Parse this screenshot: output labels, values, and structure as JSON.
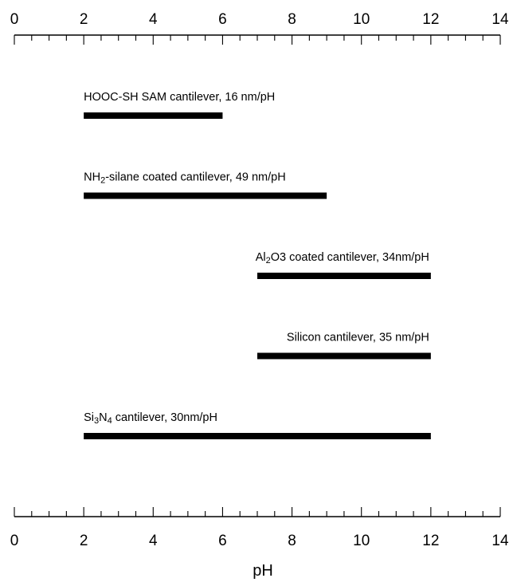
{
  "chart_data": {
    "type": "bar",
    "orientation": "horizontal-range",
    "title": "",
    "xlabel": "pH",
    "ylabel": "",
    "xlim": [
      0,
      14
    ],
    "major_ticks": [
      0,
      2,
      4,
      6,
      8,
      10,
      12,
      14
    ],
    "minor_tick_step": 0.5,
    "grid": false,
    "legend": "none",
    "bar_color": "#000000",
    "series": [
      {
        "label": "HOOC-SH SAM cantilever, 16 nm/pH",
        "label_parts": [
          {
            "t": "HOOC-SH SAM cantilever, 16 nm/pH"
          }
        ],
        "start": 2,
        "end": 6
      },
      {
        "label": "NH2-silane coated cantilever, 49 nm/pH",
        "label_parts": [
          {
            "t": "NH"
          },
          {
            "t": "2",
            "sub": true
          },
          {
            "t": "-silane coated cantilever, 49 nm/pH"
          }
        ],
        "start": 2,
        "end": 9
      },
      {
        "label": "Al2O3 coated cantilever, 34nm/pH",
        "label_parts": [
          {
            "t": "Al"
          },
          {
            "t": "2",
            "sub": true
          },
          {
            "t": "O3 coated cantilever, 34nm/pH"
          }
        ],
        "start": 7,
        "end": 12
      },
      {
        "label": "Silicon cantilever, 35 nm/pH",
        "label_parts": [
          {
            "t": "Silicon cantilever, 35 nm/pH"
          }
        ],
        "start": 7,
        "end": 12
      },
      {
        "label": "Si3N4 cantilever, 30nm/pH",
        "label_parts": [
          {
            "t": "Si"
          },
          {
            "t": "3",
            "sub": true
          },
          {
            "t": "N"
          },
          {
            "t": "4",
            "sub": true
          },
          {
            "t": " cantilever, 30nm/pH"
          }
        ],
        "start": 2,
        "end": 12
      }
    ]
  }
}
